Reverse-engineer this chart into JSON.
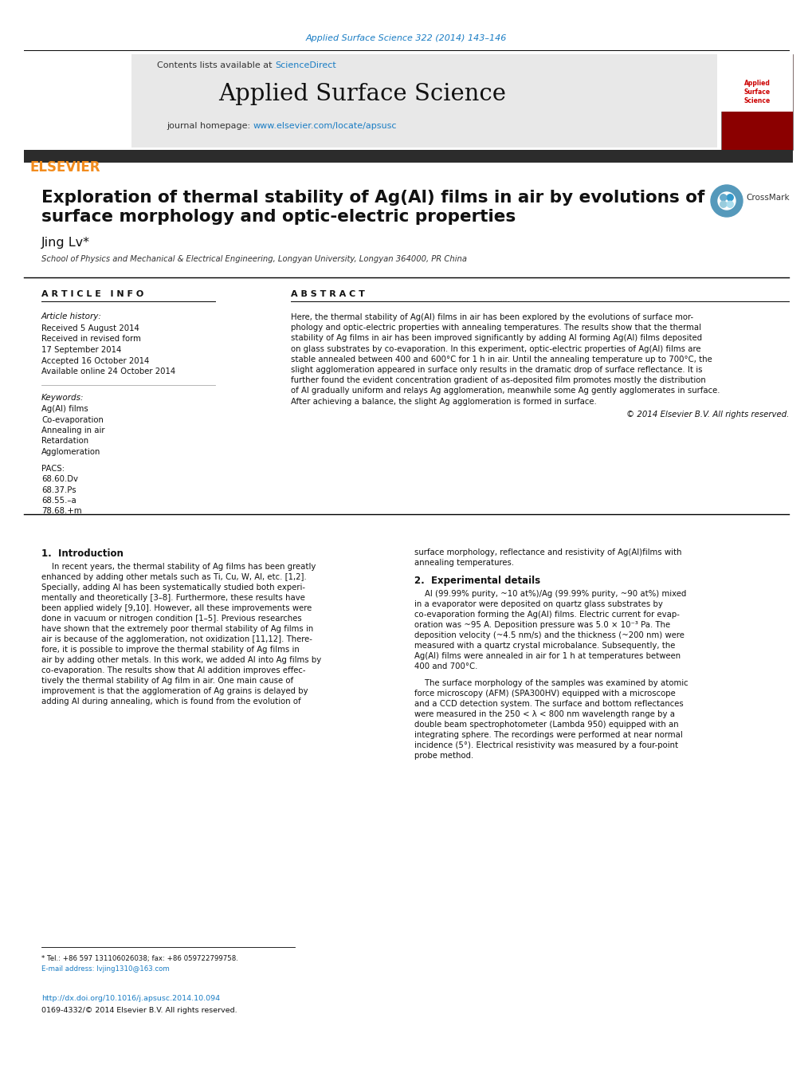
{
  "page_bg": "#ffffff",
  "top_citation": "Applied Surface Science 322 (2014) 143–146",
  "top_citation_color": "#1a7dc4",
  "header_bg": "#e8e8e8",
  "header_journal_name": "Applied Surface Science",
  "header_contents": "Contents lists available at ",
  "header_sciencedirect": "ScienceDirect",
  "header_sciencedirect_color": "#1a7dc4",
  "header_homepage": "journal homepage: ",
  "header_url": "www.elsevier.com/locate/apsusc",
  "header_url_color": "#1a7dc4",
  "elsevier_color": "#f28c1e",
  "dark_bar_color": "#2c2c2c",
  "article_title_line1": "Exploration of thermal stability of Ag(Al) films in air by evolutions of",
  "article_title_line2": "surface morphology and optic-electric properties",
  "author": "Jing Lv",
  "affiliation": "School of Physics and Mechanical & Electrical Engineering, Longyan University, Longyan 364000, PR China",
  "article_info_title": "A R T I C L E   I N F O",
  "abstract_title": "A B S T R A C T",
  "article_history_label": "Article history:",
  "history_items": [
    "Received 5 August 2014",
    "Received in revised form",
    "17 September 2014",
    "Accepted 16 October 2014",
    "Available online 24 October 2014"
  ],
  "keywords_label": "Keywords:",
  "keywords": [
    "Ag(Al) films",
    "Co-evaporation",
    "Annealing in air",
    "Retardation",
    "Agglomeration"
  ],
  "pacs_label": "PACS:",
  "pacs": [
    "68.60.Dv",
    "68.37.Ps",
    "68.55.–a",
    "78.68.+m"
  ],
  "abstract_lines": [
    "Here, the thermal stability of Ag(Al) films in air has been explored by the evolutions of surface mor-",
    "phology and optic-electric properties with annealing temperatures. The results show that the thermal",
    "stability of Ag films in air has been improved significantly by adding Al forming Ag(Al) films deposited",
    "on glass substrates by co-evaporation. In this experiment, optic-electric properties of Ag(Al) films are",
    "stable annealed between 400 and 600°C for 1 h in air. Until the annealing temperature up to 700°C, the",
    "slight agglomeration appeared in surface only results in the dramatic drop of surface reflectance. It is",
    "further found the evident concentration gradient of as-deposited film promotes mostly the distribution",
    "of Al gradually uniform and relays Ag agglomeration, meanwhile some Ag gently agglomerates in surface.",
    "After achieving a balance, the slight Ag agglomeration is formed in surface."
  ],
  "copyright": "© 2014 Elsevier B.V. All rights reserved.",
  "section1_title": "1.  Introduction",
  "section1_lines": [
    "    In recent years, the thermal stability of Ag films has been greatly",
    "enhanced by adding other metals such as Ti, Cu, W, Al, etc. [1,2].",
    "Specially, adding Al has been systematically studied both experi-",
    "mentally and theoretically [3–8]. Furthermore, these results have",
    "been applied widely [9,10]. However, all these improvements were",
    "done in vacuum or nitrogen condition [1–5]. Previous researches",
    "have shown that the extremely poor thermal stability of Ag films in",
    "air is because of the agglomeration, not oxidization [11,12]. There-",
    "fore, it is possible to improve the thermal stability of Ag films in",
    "air by adding other metals. In this work, we added Al into Ag films by",
    "co-evaporation. The results show that Al addition improves effec-",
    "tively the thermal stability of Ag film in air. One main cause of",
    "improvement is that the agglomeration of Ag grains is delayed by",
    "adding Al during annealing, which is found from the evolution of"
  ],
  "section1_right_lines": [
    "surface morphology, reflectance and resistivity of Ag(Al)films with",
    "annealing temperatures."
  ],
  "section2_title": "2.  Experimental details",
  "section2_lines": [
    "    Al (99.99% purity, ~10 at%)/Ag (99.99% purity, ~90 at%) mixed",
    "in a evaporator were deposited on quartz glass substrates by",
    "co-evaporation forming the Ag(Al) films. Electric current for evap-",
    "oration was ~95 A. Deposition pressure was 5.0 × 10⁻³ Pa. The",
    "deposition velocity (~4.5 nm/s) and the thickness (~200 nm) were",
    "measured with a quartz crystal microbalance. Subsequently, the",
    "Ag(Al) films were annealed in air for 1 h at temperatures between",
    "400 and 700°C."
  ],
  "section2_lines2": [
    "    The surface morphology of the samples was examined by atomic",
    "force microscopy (AFM) (SPA300HV) equipped with a microscope",
    "and a CCD detection system. The surface and bottom reflectances",
    "were measured in the 250 < λ < 800 nm wavelength range by a",
    "double beam spectrophotometer (Lambda 950) equipped with an",
    "integrating sphere. The recordings were performed at near normal",
    "incidence (5°). Electrical resistivity was measured by a four-point",
    "probe method."
  ],
  "footnote_tel": "* Tel.: +86 597 131106026038; fax: +86 059722799758.",
  "footnote_email": "E-mail address: lvjing1310@163.com",
  "doi_text": "http://dx.doi.org/10.1016/j.apsusc.2014.10.094",
  "issn_text": "0169-4332/© 2014 Elsevier B.V. All rights reserved."
}
